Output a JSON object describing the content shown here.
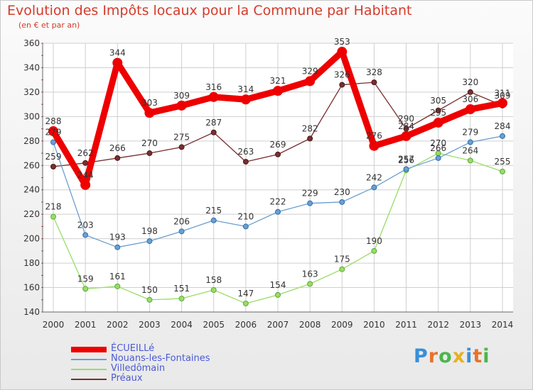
{
  "page": {
    "title": "Evolution des Impôts locaux pour la Commune par Habitant",
    "subtitle": "(en € et par an)",
    "brand": "Proxiti"
  },
  "chart_data": {
    "type": "line",
    "title": "Evolution des Impôts locaux pour la Commune par Habitant",
    "subtitle": "(en € et par an)",
    "xlabel": "",
    "ylabel": "",
    "categories": [
      "2000",
      "2001",
      "2002",
      "2003",
      "2004",
      "2005",
      "2006",
      "2007",
      "2008",
      "2009",
      "2010",
      "2011",
      "2012",
      "2013",
      "2014"
    ],
    "ylim": [
      140,
      360
    ],
    "yticks": [
      140,
      160,
      180,
      200,
      220,
      240,
      260,
      280,
      300,
      320,
      340,
      360
    ],
    "grid": true,
    "legend_position": "bottom-left",
    "series": [
      {
        "name": "ÉCUEILLé",
        "color": "#ee0000",
        "values": [
          288,
          244,
          344,
          303,
          309,
          316,
          314,
          321,
          329,
          353,
          276,
          284,
          295,
          306,
          311
        ],
        "labels": [
          "288",
          "244",
          "344",
          "303",
          "309",
          "316",
          "314",
          "321",
          "329",
          "353",
          "276",
          "284",
          "295",
          "306",
          "311"
        ]
      },
      {
        "name": "Nouans-les-Fontaines",
        "color": "#6a9fd0",
        "values": [
          279,
          203,
          193,
          198,
          206,
          215,
          210,
          222,
          229,
          230,
          242,
          257,
          266,
          279,
          284
        ],
        "labels": [
          "279",
          "203",
          "193",
          "198",
          "206",
          "215",
          "210",
          "222",
          "229",
          "230",
          "242",
          "257",
          "266",
          "279",
          "284"
        ]
      },
      {
        "name": "Villedômain",
        "color": "#99dd66",
        "values": [
          218,
          159,
          161,
          150,
          151,
          158,
          147,
          154,
          163,
          175,
          190,
          256,
          270,
          264,
          255
        ],
        "labels": [
          "218",
          "159",
          "161",
          "150",
          "151",
          "158",
          "147",
          "154",
          "163",
          "175",
          "190",
          "256",
          "270",
          "264",
          "255"
        ]
      },
      {
        "name": "Préaux",
        "color": "#7a2f2f",
        "values": [
          259,
          262,
          266,
          270,
          275,
          287,
          263,
          269,
          282,
          326,
          328,
          290,
          305,
          320,
          309
        ],
        "labels": [
          "259",
          "262",
          "266",
          "270",
          "275",
          "287",
          "263",
          "269",
          "282",
          "326",
          "328",
          "290",
          "305",
          "320",
          "309"
        ]
      }
    ]
  }
}
